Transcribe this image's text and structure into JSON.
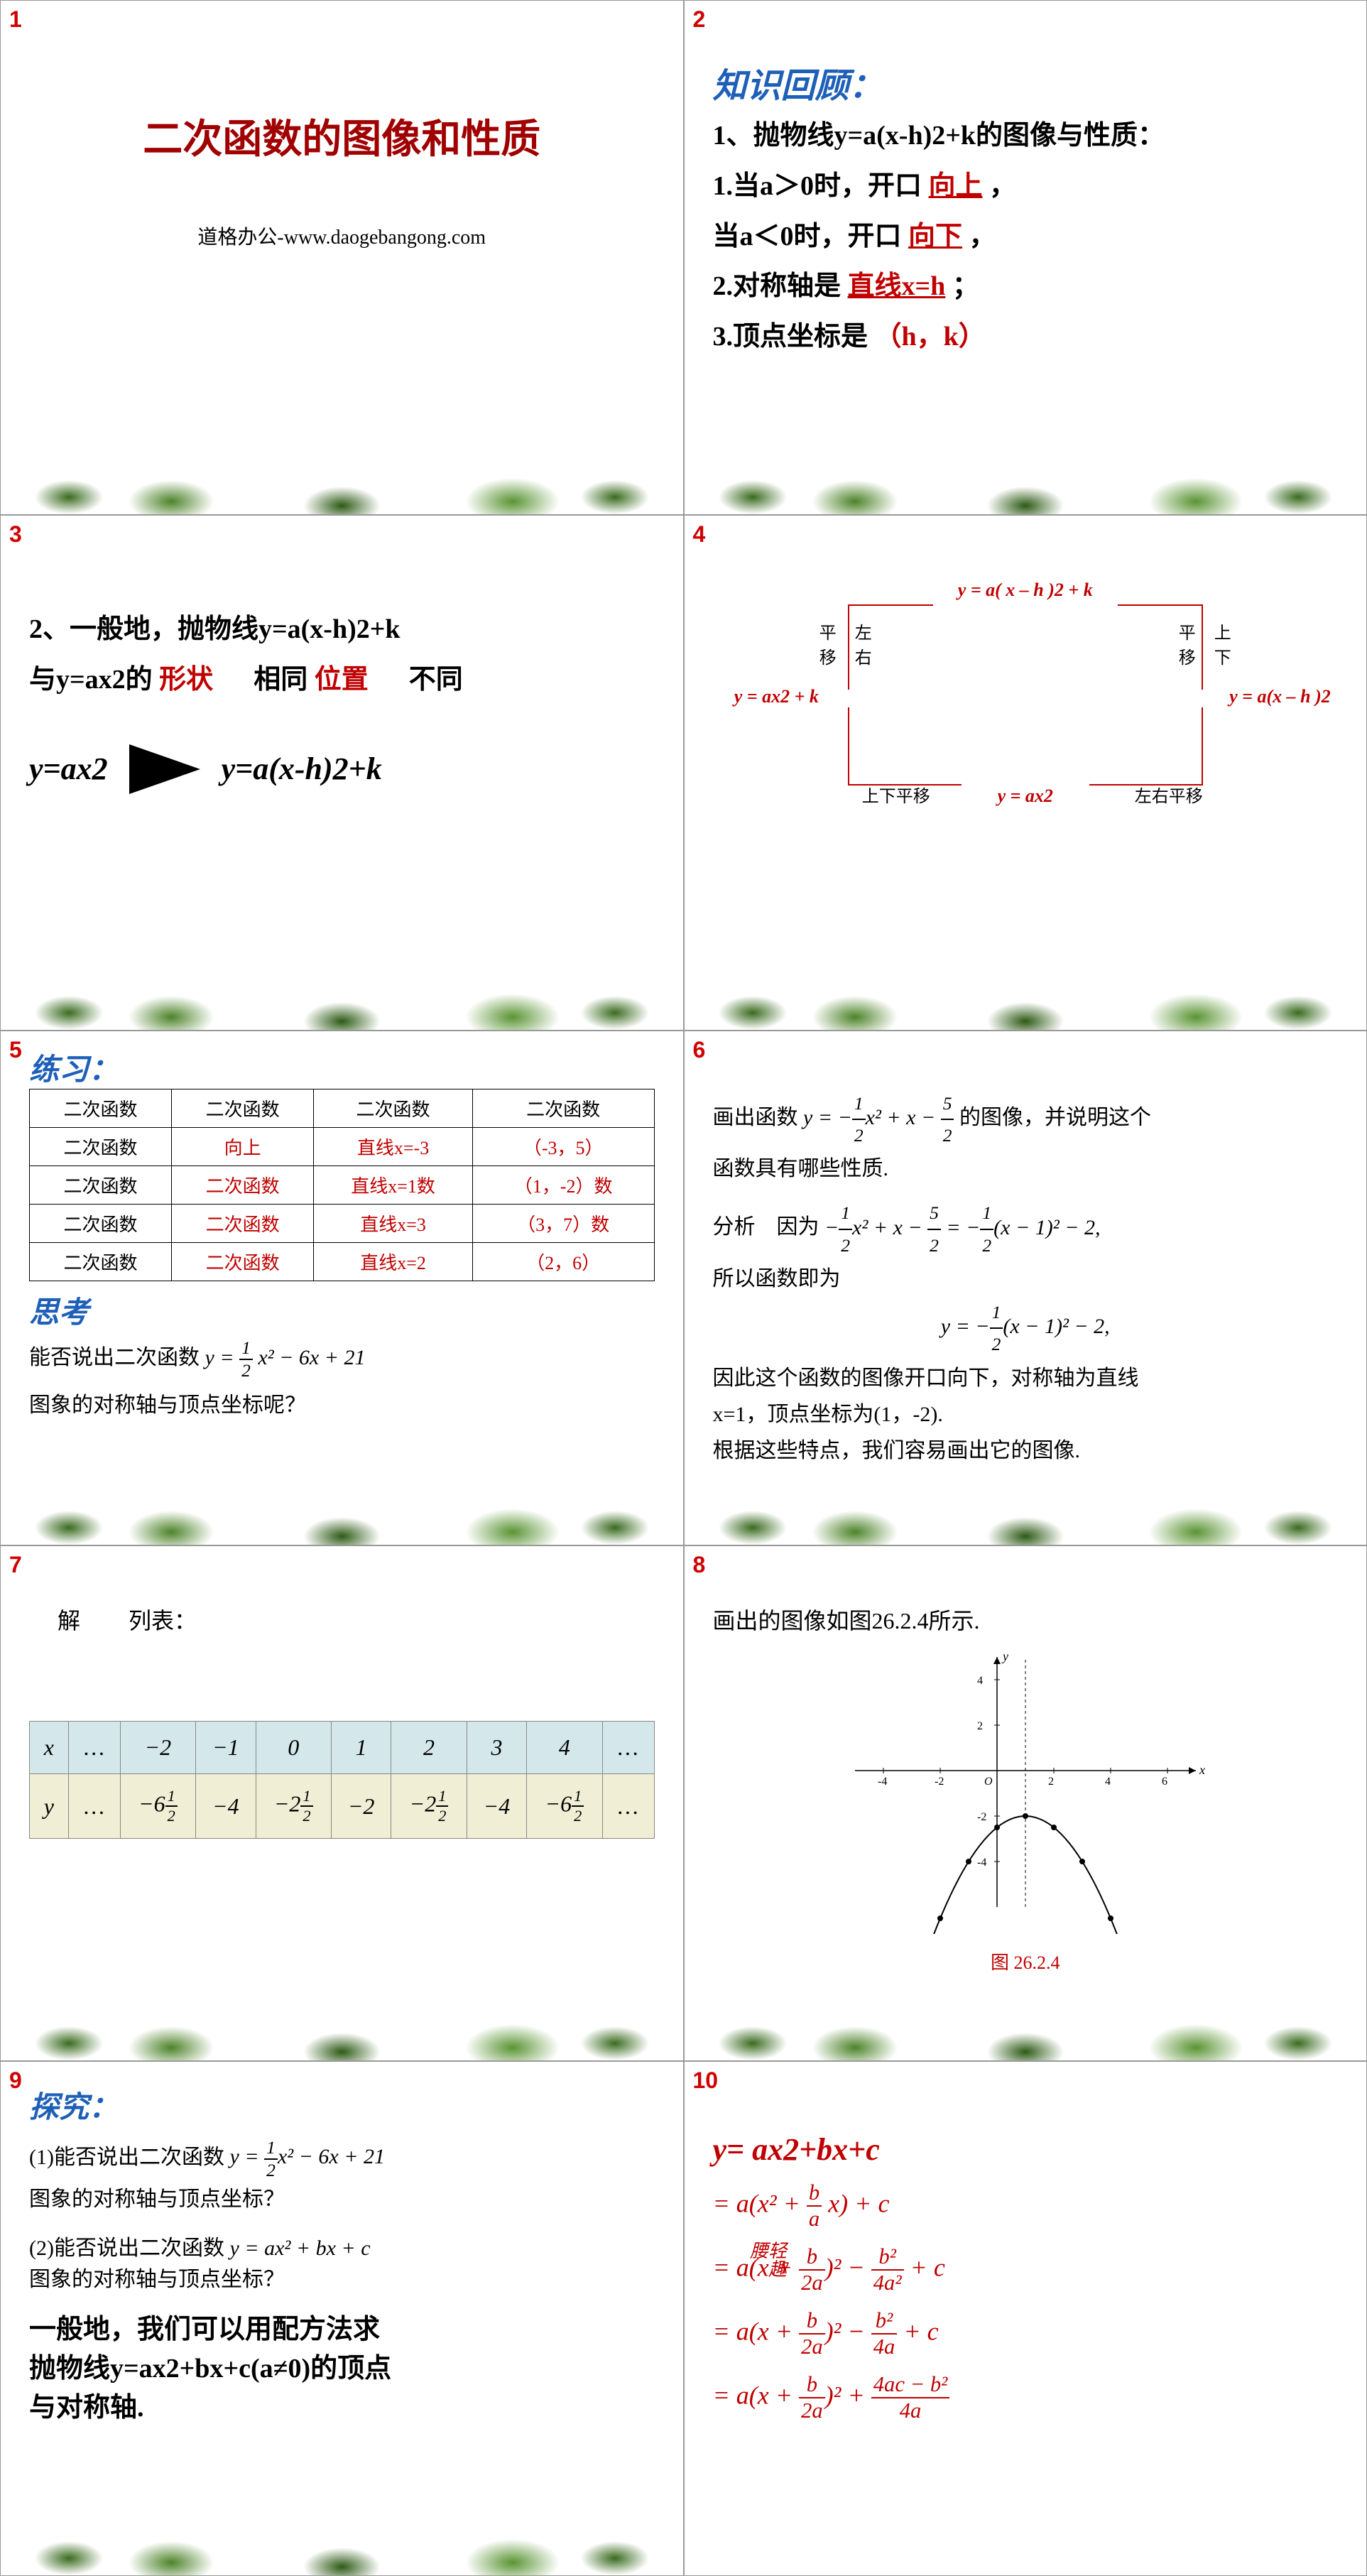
{
  "slides": [
    {
      "num": "1"
    },
    {
      "num": "2"
    },
    {
      "num": "3"
    },
    {
      "num": "4"
    },
    {
      "num": "5"
    },
    {
      "num": "6"
    },
    {
      "num": "7"
    },
    {
      "num": "8"
    },
    {
      "num": "9"
    },
    {
      "num": "10"
    }
  ],
  "slide1": {
    "title": "二次函数的图像和性质",
    "subtitle": "道格办公-www.daogebangong.com"
  },
  "slide2": {
    "heading": "知识回顾：",
    "line1": "1、抛物线y=a(x-h)2+k的图像与性质：",
    "p1a": "1.当a＞0时，开口",
    "p1a_ans": "向上",
    "p1a_after": "，",
    "p1b": "当a＜0时，开口",
    "p1b_ans": "向下",
    "p1b_after": "，",
    "p2": "2.对称轴是",
    "p2_ans": "直线x=h",
    "p2_after": "；",
    "p3": "3.顶点坐标是",
    "p3_ans": "（h，k）"
  },
  "slide3": {
    "line1a": "2、一般地，抛物线y=a(x-h)2+k",
    "line1b_pre": "与y=ax2的",
    "line1b_red1": "形状",
    "line1b_mid": "相同",
    "line1b_red2": "位置",
    "line1b_end": "不同",
    "left_formula": "y=ax2",
    "right_formula": "y=a(x-h)2+k"
  },
  "slide4": {
    "top": "y = a( x – h )2  + k",
    "mid_left": "y = ax2 + k",
    "mid_right": "y = a(x – h )2",
    "bottom": "y = ax2",
    "lbl_tl1": "平",
    "lbl_tl2": "移",
    "lbl_tl3": "左",
    "lbl_tl4": "右",
    "lbl_tr1": "平",
    "lbl_tr2": "移",
    "lbl_tr3": "上",
    "lbl_tr4": "下",
    "lbl_bl": "上下平移",
    "lbl_br": "左右平移"
  },
  "slide5": {
    "heading": "练习：",
    "table": {
      "headers": [
        "二次函数",
        "二次函数",
        "二次函数",
        "二次函数"
      ],
      "rows": [
        [
          "二次函数",
          "向上",
          "直线x=-3",
          "（-3，5）"
        ],
        [
          "二次函数",
          "二次函数",
          "直线x=1数",
          "（1，-2）数"
        ],
        [
          "二次函数",
          "二次函数",
          "直线x=3",
          "（3，7）数"
        ],
        [
          "二次函数",
          "二次函数",
          "直线x=2",
          "（2，6）"
        ]
      ],
      "red_cols": [
        false,
        true,
        true,
        true
      ]
    },
    "think": "思考",
    "q1": "能否说出二次函数",
    "q1_formula": "y = ½ x² − 6x + 21",
    "q2": "图象的对称轴与顶点坐标呢？"
  },
  "slide6": {
    "line1": "画出函数",
    "f1": "y = −½x² + x − 5/2",
    "line1b": "的图像，并说明这个",
    "line1c": "函数具有哪些性质.",
    "line2": "分析　因为",
    "f2": "−½x² + x − 5/2 = −½(x − 1)² − 2,",
    "line3": "所以函数即为",
    "f3": "y = −½(x − 1)² − 2,",
    "line4": "因此这个函数的图像开口向下，对称轴为直线",
    "line5": "x=1，顶点坐标为(1，-2).",
    "line6": "根据这些特点，我们容易画出它的图像."
  },
  "slide7": {
    "label_solve": "解",
    "label_table": "列表：",
    "x_row": [
      "x",
      "…",
      "−2",
      "−1",
      "0",
      "1",
      "2",
      "3",
      "4",
      "…"
    ],
    "y_row": [
      "y",
      "…",
      "−6½",
      "−4",
      "−2½",
      "−2",
      "−2½",
      "−4",
      "−6½",
      "…"
    ]
  },
  "slide8": {
    "caption": "画出的图像如图26.2.4所示.",
    "fig_label": "图 26.2.4",
    "chart": {
      "type": "parabola",
      "vertex": [
        1,
        -2
      ],
      "a": -0.5,
      "xlim": [
        -5,
        7
      ],
      "ylim": [
        -6,
        5
      ],
      "xticks": [
        -4,
        -2,
        2,
        4,
        6
      ],
      "yticks": [
        -4,
        -2,
        2,
        4
      ],
      "points": [
        [
          -2,
          -6.5
        ],
        [
          -1,
          -4
        ],
        [
          0,
          -2.5
        ],
        [
          1,
          -2
        ],
        [
          2,
          -2.5
        ],
        [
          3,
          -4
        ],
        [
          4,
          -6.5
        ]
      ],
      "axis_color": "#000000",
      "curve_color": "#000000",
      "dash_color": "#000000",
      "point_color": "#000000"
    }
  },
  "slide9": {
    "heading": "探究：",
    "q1": "(1)能否说出二次函数",
    "q1f": "y = ½x² − 6x + 21",
    "q1b": "图象的对称轴与顶点坐标？",
    "q2": "(2)能否说出二次函数",
    "q2f": "y = ax² + bx + c",
    "q2b": "图象的对称轴与顶点坐标？",
    "conclusion1": "一般地，我们可以用配方法求",
    "conclusion2": "抛物线y=ax2+bx+c(a≠0)的顶点",
    "conclusion3": "与对称轴."
  },
  "slide10": {
    "title": "y= ax2+bx+c",
    "overlay": "轻趣腰",
    "step1_pre": "= a(x² + ",
    "step1_frac_n": "b",
    "step1_frac_d": "a",
    "step1_post": " x) + c",
    "step2_pre": "= a(x + ",
    "step2_f1n": "b",
    "step2_f1d": "2a",
    "step2_mid": ")² − ",
    "step2_f2n": "b²",
    "step2_f2d": "4a²",
    "step2_post": " + c",
    "step3_pre": "= a(x + ",
    "step3_f1n": "b",
    "step3_f1d": "2a",
    "step3_mid": ")² − ",
    "step3_f2n": "b²",
    "step3_f2d": "4a",
    "step3_post": " + c",
    "step4_pre": "= a(x + ",
    "step4_f1n": "b",
    "step4_f1d": "2a",
    "step4_mid": ")² + ",
    "step4_f2n": "4ac − b²",
    "step4_f2d": "4a"
  },
  "colors": {
    "red": "#c00000",
    "blue": "#1e5fb8",
    "green_dark": "#2d5a15",
    "green_light": "#5a9433",
    "slide_num": "#d00000"
  }
}
